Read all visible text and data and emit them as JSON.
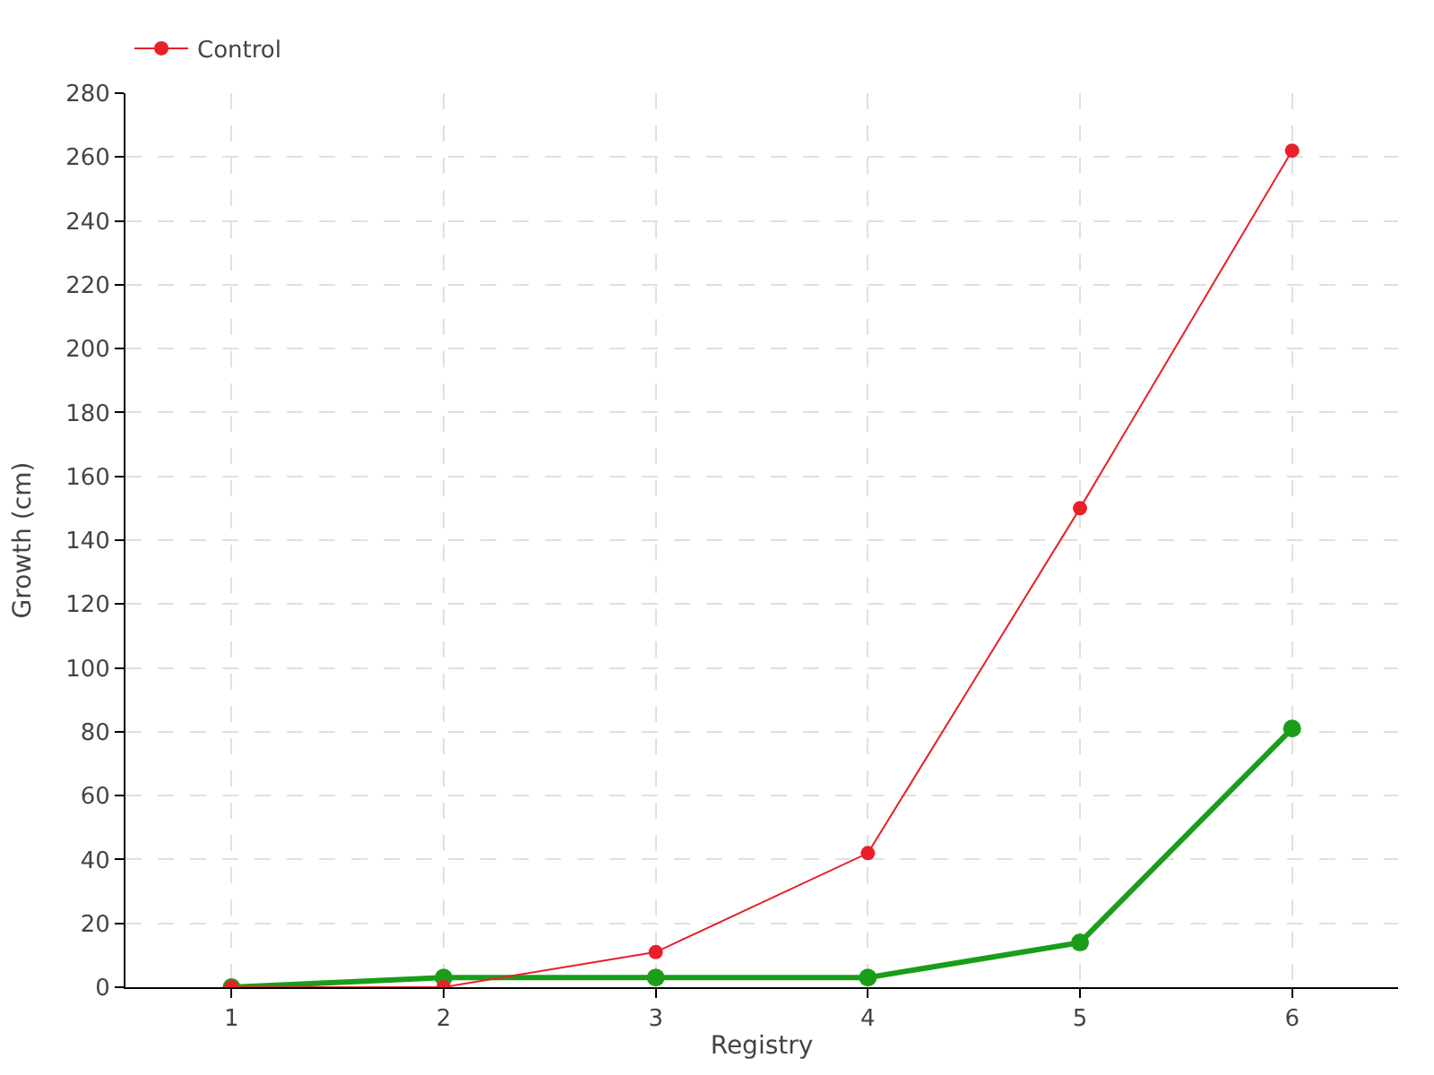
{
  "chart_data": {
    "type": "line",
    "xlabel": "Registry",
    "ylabel": "Growth (cm)",
    "x": [
      1,
      2,
      3,
      4,
      5,
      6
    ],
    "series": [
      {
        "color": "#1a9e1a",
        "values": [
          0,
          3,
          3,
          3,
          14,
          81
        ]
      },
      {
        "name": "Control",
        "color": "#e8202a",
        "values": [
          0,
          0,
          11,
          42,
          150,
          262
        ]
      }
    ],
    "xlim": [
      0.5,
      6.5
    ],
    "xticks": [
      1,
      2,
      3,
      4,
      5,
      6
    ],
    "ylim": [
      0,
      280
    ],
    "yticks": [
      0,
      20,
      40,
      60,
      80,
      100,
      120,
      140,
      160,
      180,
      200,
      220,
      240,
      260,
      280
    ],
    "grid": true,
    "legend": "top left",
    "marker": "circle",
    "line_style": "solid"
  }
}
